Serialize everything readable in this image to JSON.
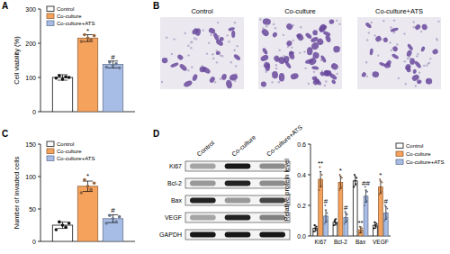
{
  "panels": [
    "A",
    "B",
    "C",
    "D"
  ],
  "images": {
    "labels": [
      "Control",
      "Co-culture",
      "Co-culture+ATS"
    ]
  },
  "blot": {
    "rows": [
      "Ki67",
      "Bcl-2",
      "Bax",
      "VEGF",
      "GAPDH"
    ],
    "columns": [
      "Control",
      "Co-culture",
      "Co-culture+ATS"
    ],
    "intensity": [
      [
        0.3,
        0.9,
        0.4
      ],
      [
        0.35,
        0.85,
        0.4
      ],
      [
        0.85,
        0.35,
        0.7
      ],
      [
        0.3,
        0.85,
        0.45
      ],
      [
        0.9,
        0.9,
        0.9
      ]
    ]
  },
  "chart_data": [
    {
      "type": "bar",
      "y_label": "Cell viability (%)",
      "categories": [
        null
      ],
      "ylim": [
        0,
        300
      ],
      "yticks": [
        0,
        100,
        200,
        300
      ],
      "legend": "upper left",
      "series": [
        {
          "name": "Control",
          "color": "#ffffff",
          "values": [
            100
          ],
          "errors": [
            8
          ],
          "points": [
            [
              98,
              105,
              95,
              102,
              100
            ]
          ],
          "annotations": [
            null
          ]
        },
        {
          "name": "Co-culture",
          "color": "#f5a25d",
          "values": [
            215
          ],
          "errors": [
            10
          ],
          "points": [
            [
              205,
              225,
              215,
              210,
              222
            ]
          ],
          "annotations": [
            "*"
          ]
        },
        {
          "name": "Co-culture+ATS",
          "color": "#a8bde6",
          "values": [
            138
          ],
          "errors": [
            10
          ],
          "points": [
            [
              130,
              145,
              135,
              140,
              128
            ]
          ],
          "annotations": [
            "#"
          ]
        }
      ]
    },
    {
      "type": "bar",
      "y_label": "Number of invaded cells",
      "categories": [
        null
      ],
      "ylim": [
        0,
        150
      ],
      "yticks": [
        0,
        50,
        100,
        150
      ],
      "legend": "upper left",
      "series": [
        {
          "name": "Control",
          "color": "#ffffff",
          "values": [
            25
          ],
          "errors": [
            5
          ],
          "points": [
            [
              18,
              30,
              25,
              22,
              28
            ]
          ],
          "annotations": [
            null
          ]
        },
        {
          "name": "Co-culture",
          "color": "#f5a25d",
          "values": [
            85
          ],
          "errors": [
            8
          ],
          "points": [
            [
              75,
              95,
              85,
              80,
              90
            ]
          ],
          "annotations": [
            "*"
          ]
        },
        {
          "name": "Co-culture+ATS",
          "color": "#a8bde6",
          "values": [
            35
          ],
          "errors": [
            6
          ],
          "points": [
            [
              28,
              40,
              35,
              30,
              38
            ]
          ],
          "annotations": [
            "#"
          ]
        }
      ]
    },
    {
      "type": "bar",
      "y_label": "Relative protein level",
      "categories": [
        "Ki67",
        "Bcl-2",
        "Bax",
        "VEGF"
      ],
      "ylim": [
        0,
        0.6
      ],
      "yticks": [
        {
          "value": 0,
          "label": "0.0"
        },
        0.2,
        0.4,
        0.6
      ],
      "legend": "right",
      "series": [
        {
          "name": "Control",
          "color": "#ffffff",
          "values": [
            0.05,
            0.09,
            0.36,
            0.07
          ],
          "errors": [
            0.02,
            0.02,
            0.03,
            0.02
          ],
          "points": [
            [
              0.03,
              0.07,
              0.05,
              0.04,
              0.06
            ],
            [
              0.07,
              0.1,
              0.09,
              0.11,
              0.08
            ],
            [
              0.32,
              0.4,
              0.36,
              0.34,
              0.38
            ],
            [
              0.05,
              0.09,
              0.07,
              0.06,
              0.08
            ]
          ],
          "annotations": [
            null,
            null,
            null,
            null
          ]
        },
        {
          "name": "Co-culture",
          "color": "#f5a25d",
          "values": [
            0.37,
            0.35,
            0.04,
            0.32
          ],
          "errors": [
            0.05,
            0.04,
            0.02,
            0.04
          ],
          "points": [
            [
              0.3,
              0.45,
              0.37,
              0.33,
              0.4
            ],
            [
              0.3,
              0.4,
              0.35,
              0.32,
              0.38
            ],
            [
              0.02,
              0.06,
              0.04,
              0.03,
              0.05
            ],
            [
              0.27,
              0.37,
              0.32,
              0.29,
              0.35
            ]
          ],
          "annotations": [
            "**",
            "*",
            "**",
            "*"
          ]
        },
        {
          "name": "Co-culture+ATS",
          "color": "#a8bde6",
          "values": [
            0.13,
            0.12,
            0.26,
            0.15
          ],
          "errors": [
            0.04,
            0.03,
            0.04,
            0.04
          ],
          "points": [
            [
              0.08,
              0.2,
              0.13,
              0.1,
              0.15
            ],
            [
              0.08,
              0.16,
              0.12,
              0.1,
              0.14
            ],
            [
              0.2,
              0.32,
              0.26,
              0.23,
              0.29
            ],
            [
              0.1,
              0.2,
              0.15,
              0.12,
              0.18
            ]
          ],
          "annotations": [
            "#",
            "#",
            "##",
            "#"
          ]
        }
      ]
    }
  ]
}
